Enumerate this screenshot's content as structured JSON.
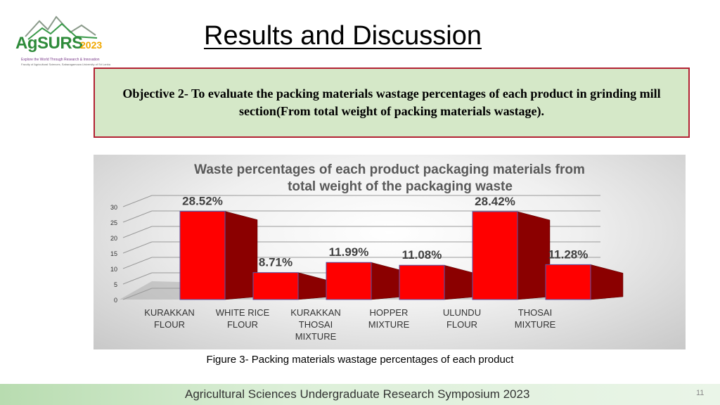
{
  "logo": {
    "brand": "AgSURS",
    "year": "2023",
    "tagline": "Explore the World Through Research & Innovation",
    "subtagline": "Faculty of Agricultural Sciences, Sabaragamuwa University of Sri Lanka"
  },
  "page_title": "Results and Discussion",
  "objective": "Objective 2- To evaluate the packing materials wastage percentages of each product in grinding mill section(From total weight of packing materials wastage).",
  "chart_data": {
    "type": "bar",
    "title_line1": "Waste percentages of each product packaging materials from",
    "title_line2": "total weight of the packaging waste",
    "categories": [
      [
        "KURAKKAN",
        "FLOUR"
      ],
      [
        "WHITE RICE",
        "FLOUR"
      ],
      [
        "KURAKKAN",
        "THOSAI",
        "MIXTURE"
      ],
      [
        "HOPPER",
        "MIXTURE"
      ],
      [
        "ULUNDU",
        "FLOUR"
      ],
      [
        "THOSAI",
        "MIXTURE"
      ]
    ],
    "values": [
      28.52,
      8.71,
      11.99,
      11.08,
      28.42,
      11.28
    ],
    "data_labels": [
      "28.52%",
      "8.71%",
      "11.99%",
      "11.08%",
      "28.42%",
      "11.28%"
    ],
    "yticks": [
      "0",
      "5",
      "10",
      "15",
      "20",
      "25",
      "30"
    ],
    "ylim": [
      0,
      30
    ],
    "grid": true,
    "style": "3d-column",
    "bar_colors": {
      "front": "#ff0000",
      "side": "#8b0000",
      "top": "#d40000"
    }
  },
  "figure_caption": "Figure 3- Packing materials wastage percentages of each product",
  "footer": "Agricultural Sciences Undergraduate Research Symposium 2023",
  "page_number": "11"
}
